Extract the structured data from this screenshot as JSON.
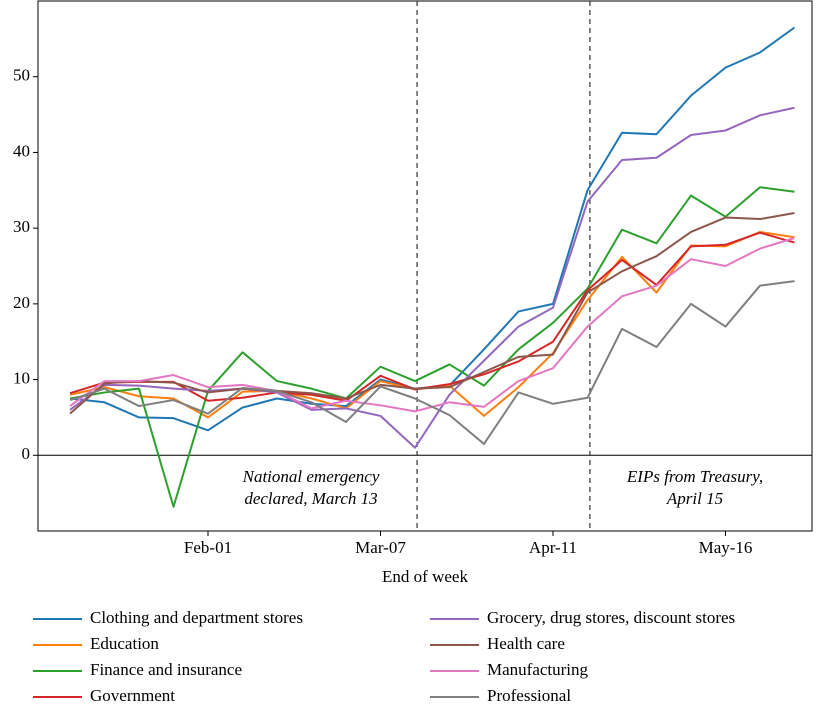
{
  "chart_data": {
    "type": "line",
    "x_label": "End of week",
    "categories": [
      null,
      null,
      null,
      null,
      "Feb-01",
      null,
      null,
      null,
      null,
      "Mar-07",
      null,
      null,
      null,
      null,
      "Apr-11",
      null,
      null,
      null,
      null,
      "May-16",
      null,
      null
    ],
    "ylim": [
      -10,
      60
    ],
    "yticks": [
      0,
      10,
      20,
      30,
      40,
      50
    ],
    "annotations": [
      [
        "National emergency",
        "declared, March 13"
      ],
      [
        "EIPs from Treasury,",
        "April 15"
      ]
    ],
    "series": [
      {
        "name": "Clothing and department stores",
        "color": "#1f77b4",
        "values": [
          7.5,
          7.0,
          5.0,
          4.9,
          3.3,
          6.3,
          7.5,
          6.8,
          6.5,
          10.0,
          8.8,
          9.2,
          14,
          19,
          20,
          35,
          42.6,
          42.4,
          47.5,
          51.2,
          53.2,
          56.5
        ]
      },
      {
        "name": "Education",
        "color": "#ff7f0e",
        "values": [
          8,
          9,
          7.8,
          7.5,
          5,
          8.4,
          8.5,
          7.5,
          6.2,
          9.8,
          8.7,
          9.2,
          5.2,
          9,
          13.5,
          20.5,
          26.2,
          21.5,
          27.7,
          27.6,
          29.5,
          28.8
        ]
      },
      {
        "name": "Finance and insurance",
        "color": "#2ca02c",
        "values": [
          7.5,
          8.3,
          8.8,
          -6.8,
          8.5,
          13.6,
          9.8,
          8.8,
          7.5,
          11.7,
          9.8,
          12,
          9.2,
          14,
          17.5,
          22,
          29.8,
          28.0,
          34.3,
          31.5,
          35.4,
          34.8
        ]
      },
      {
        "name": "Government",
        "color": "#d62728",
        "values": [
          8.2,
          9.6,
          9.7,
          9.7,
          7.2,
          7.6,
          8.3,
          8.0,
          7.2,
          10.5,
          8.7,
          9.4,
          10.7,
          12.4,
          15,
          21.8,
          25.8,
          22.5,
          27.6,
          27.8,
          29.4,
          28.1
        ]
      },
      {
        "name": "Grocery, drug stores, discount stores",
        "color": "#9467bd",
        "values": [
          6,
          9.3,
          9.2,
          8.8,
          8.5,
          8.8,
          8.3,
          6.0,
          6.2,
          5.2,
          1.0,
          8,
          12.5,
          17,
          19.5,
          33.5,
          39,
          39.3,
          42.3,
          42.9,
          44.9,
          45.9
        ]
      },
      {
        "name": "Health care",
        "color": "#8c564b",
        "values": [
          5.5,
          9.5,
          9.8,
          9.6,
          8.3,
          8.8,
          8.5,
          8.2,
          7.5,
          9.3,
          8.8,
          9.0,
          11,
          13,
          13.3,
          21.5,
          24.3,
          26.3,
          29.5,
          31.4,
          31.2,
          32
        ]
      },
      {
        "name": "Manufacturing",
        "color": "#e377c2",
        "values": [
          6.5,
          9.8,
          9.8,
          10.6,
          9.0,
          9.3,
          8.5,
          6.2,
          7.2,
          6.6,
          5.8,
          7.0,
          6.4,
          9.8,
          11.5,
          17,
          21,
          22.4,
          25.9,
          25.0,
          27.3,
          28.7
        ]
      },
      {
        "name": "Professional",
        "color": "#7f7f7f",
        "values": [
          7.3,
          8.8,
          6.5,
          7.3,
          5.5,
          8.9,
          8.5,
          7.0,
          4.4,
          9.1,
          7.5,
          5.3,
          1.5,
          8.3,
          6.8,
          7.6,
          16.7,
          14.3,
          20.0,
          17.0,
          22.4,
          23.0
        ]
      }
    ]
  }
}
